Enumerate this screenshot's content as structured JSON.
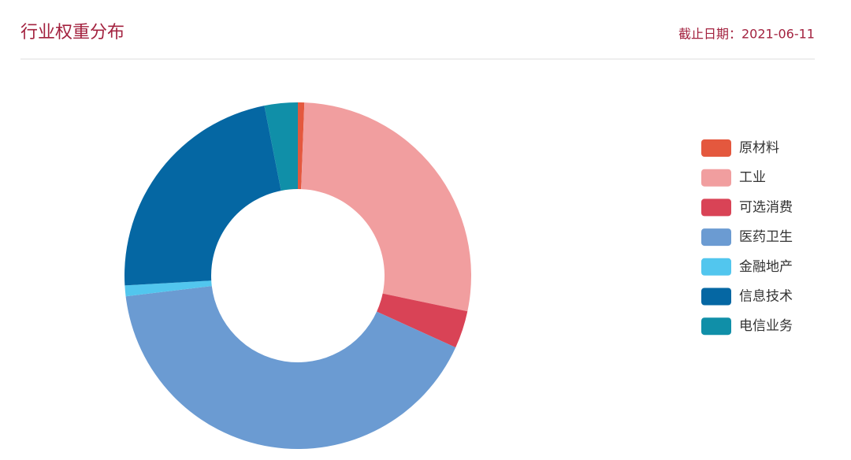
{
  "chart_data": {
    "type": "donut",
    "title": "行业权重分布",
    "date_label": "截止日期：2021-06-11",
    "categories": [
      "原材料",
      "工业",
      "可选消费",
      "医药卫生",
      "金融地产",
      "信息技术",
      "电信业务"
    ],
    "values": [
      0.6,
      27.7,
      3.5,
      41.3,
      1.0,
      22.8,
      3.1
    ],
    "colors": [
      "#e4583e",
      "#f19e9f",
      "#d94356",
      "#6b9bd2",
      "#52c6ee",
      "#0567a3",
      "#108fa8"
    ],
    "legend": "right"
  }
}
